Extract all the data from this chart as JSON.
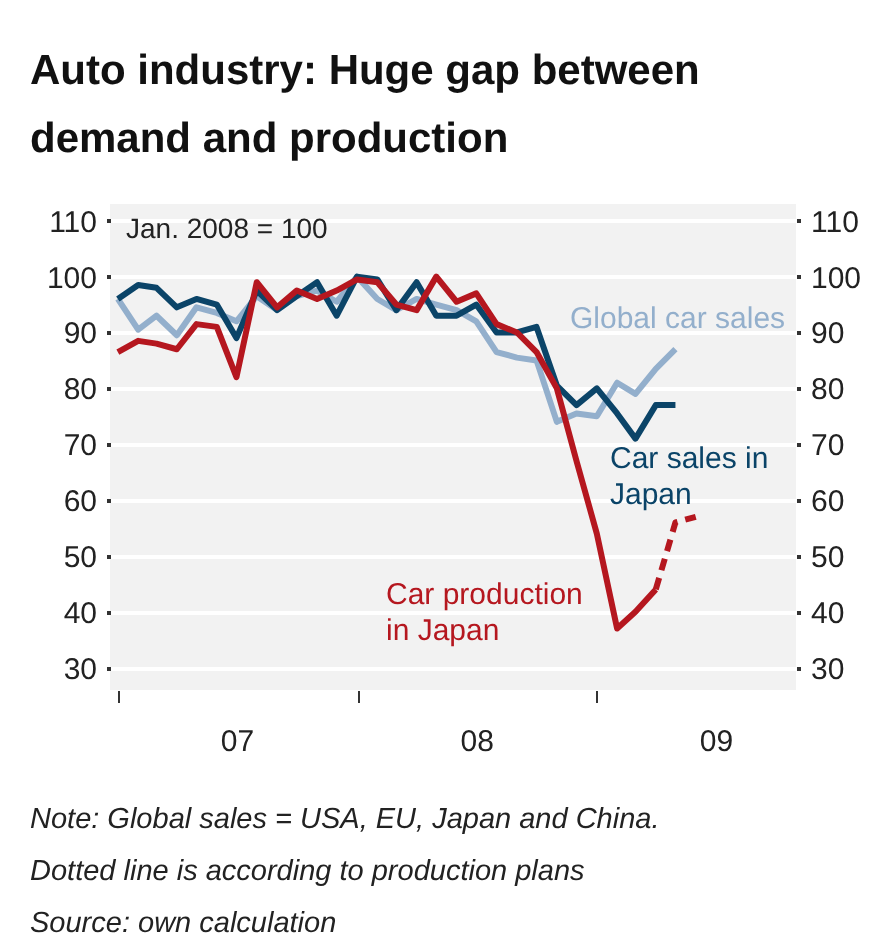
{
  "chart_data": {
    "type": "line",
    "title": "Auto industry: Huge gap between demand and production",
    "x": [
      "2007-01",
      "2007-02",
      "2007-03",
      "2007-04",
      "2007-05",
      "2007-06",
      "2007-07",
      "2007-08",
      "2007-09",
      "2007-10",
      "2007-11",
      "2007-12",
      "2008-01",
      "2008-02",
      "2008-03",
      "2008-04",
      "2008-05",
      "2008-06",
      "2008-07",
      "2008-08",
      "2008-09",
      "2008-10",
      "2008-11",
      "2008-12",
      "2009-01",
      "2009-02",
      "2009-03",
      "2009-04",
      "2009-05"
    ],
    "series": [
      {
        "name": "Global car sales",
        "color": "#93afcc",
        "values": [
          96,
          90.5,
          93,
          89.5,
          94.5,
          93.5,
          92,
          96.5,
          94,
          96.5,
          97.5,
          95.5,
          100,
          96,
          94,
          96,
          95,
          94,
          92,
          86.5,
          85.5,
          85,
          74,
          75.5,
          75,
          81,
          79,
          83.5,
          87
        ]
      },
      {
        "name": "Car sales in Japan",
        "color": "#0b4468",
        "values": [
          96,
          98.5,
          98,
          94.5,
          96,
          95,
          89,
          97.5,
          94,
          96.5,
          99,
          93,
          100,
          99.5,
          94,
          99,
          93,
          93,
          95,
          90,
          90,
          91,
          80.5,
          77,
          80,
          75.5,
          71,
          77,
          77
        ]
      },
      {
        "name": "Car production in Japan",
        "color": "#b5171f",
        "values": [
          86.5,
          88.5,
          88,
          87,
          91.5,
          91,
          82,
          99,
          94.5,
          97.5,
          96,
          97.5,
          99.5,
          99,
          95,
          94,
          100,
          95.5,
          97,
          91.5,
          90,
          86.5,
          80,
          67,
          54,
          37,
          40,
          44,
          null
        ]
      },
      {
        "color": "#b5171f",
        "line_style": "dashed",
        "x": [
          "2009-04",
          "2009-05",
          "2009-06"
        ],
        "values": [
          44,
          56,
          57
        ]
      }
    ],
    "xlim": [
      "2006-12-20",
      "2009-11-01"
    ],
    "xticks": [
      {
        "value": "2007-01",
        "label": null
      },
      {
        "value": "2007-07",
        "label": "07"
      },
      {
        "value": "2008-01",
        "label": null
      },
      {
        "value": "2008-07",
        "label": "08"
      },
      {
        "value": "2009-01",
        "label": null
      },
      {
        "value": "2009-07",
        "label": "09"
      }
    ],
    "ylim": [
      26,
      113
    ],
    "yticks": [
      30,
      40,
      50,
      60,
      70,
      80,
      90,
      100,
      110
    ],
    "y2lim": [
      26,
      113
    ],
    "y2ticks": [
      30,
      40,
      50,
      60,
      70,
      80,
      90,
      100,
      110
    ],
    "grid": "y",
    "line_style": "solid",
    "annotations": [
      "Jan. 2008 = 100",
      "Note: Global sales = USA, EU, Japan and China.",
      "Dotted line is according to production plans",
      "Source: own calculation"
    ]
  }
}
